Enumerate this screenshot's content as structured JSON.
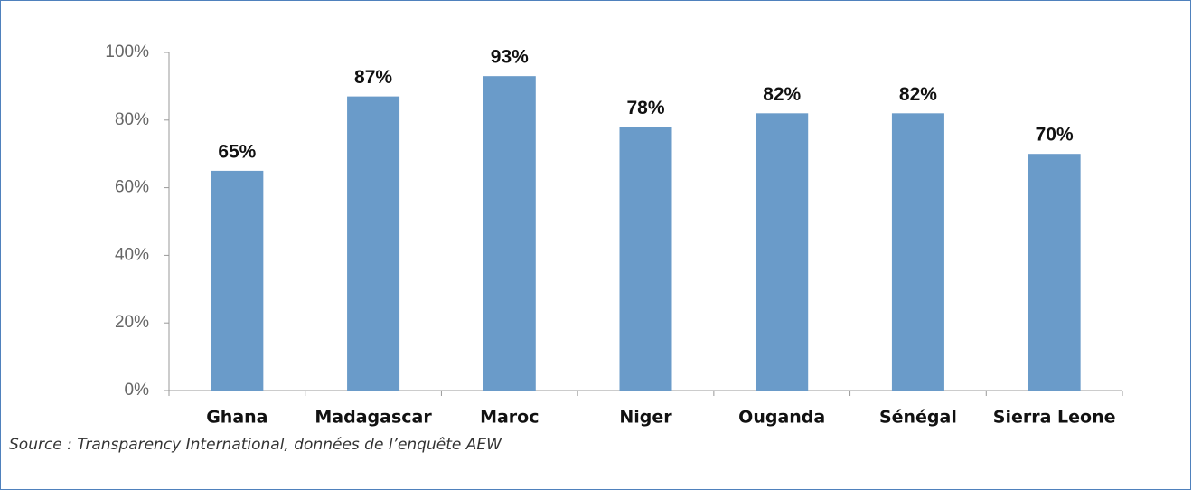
{
  "chart_data": {
    "type": "bar",
    "categories": [
      "Ghana",
      "Madagascar",
      "Maroc",
      "Niger",
      "Ouganda",
      "Sénégal",
      "Sierra Leone"
    ],
    "values": [
      65,
      87,
      93,
      78,
      82,
      82,
      70
    ],
    "value_labels": [
      "65%",
      "87%",
      "93%",
      "78%",
      "82%",
      "82%",
      "70%"
    ],
    "color": "#6a9bc9",
    "ylim": [
      0,
      100
    ],
    "yticks": [
      {
        "value": 0,
        "label": "0%"
      },
      {
        "value": 20,
        "label": "20%"
      },
      {
        "value": 40,
        "label": "40%"
      },
      {
        "value": 60,
        "label": "60%"
      },
      {
        "value": 80,
        "label": "80%"
      },
      {
        "value": 100,
        "label": "100%"
      }
    ],
    "grid": false,
    "source": "Source : Transparency International, données de l’enquête AEW"
  }
}
